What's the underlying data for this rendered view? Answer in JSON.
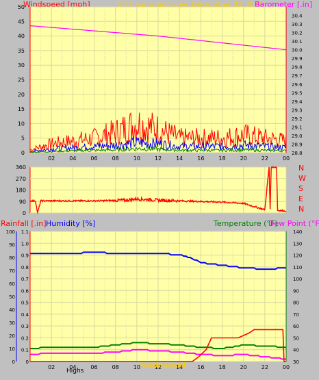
{
  "header": {
    "title": "24 hour graph day.   December 01 2015",
    "left_label": "Windspeed [mph]",
    "right_label": "Barometer [.in]"
  },
  "compass": [
    "N",
    "W",
    "S",
    "E",
    "N"
  ],
  "footer": {
    "rain_label": "Rainfall [.in]",
    "humidity_label": "Humidity [%]",
    "temp_label": "Temperature (°F)",
    "dew_label": "Dew Point (°F)",
    "high_label": "Highs",
    "wm_label": "Wunderground"
  },
  "colors": {
    "plot_bg": "#ffffa8",
    "grid": "#d8d8a0",
    "wind": "#ff0000",
    "gust": "#0000ff",
    "avg": "#008000",
    "baro": "#ff00ff",
    "temp": "#008000",
    "dew": "#ff00ff",
    "humidity": "#0000ff",
    "rain": "#ff0000",
    "axis": "#ff0000"
  },
  "chart_data": [
    {
      "type": "line",
      "name": "wind-barometer",
      "x_ticks": [
        "02",
        "04",
        "06",
        "08",
        "10",
        "12",
        "14",
        "16",
        "18",
        "20",
        "22",
        "00"
      ],
      "xlim": [
        0,
        24
      ],
      "ylim_left": [
        0,
        50
      ],
      "y_ticks_left": [
        0,
        5,
        10,
        15,
        20,
        25,
        30,
        35,
        40,
        45,
        50
      ],
      "ylim_right": [
        28.8,
        30.5
      ],
      "y_ticks_right": [
        28.8,
        28.9,
        29.0,
        29.1,
        29.2,
        29.3,
        29.4,
        29.5,
        29.6,
        29.7,
        29.8,
        29.9,
        30.0,
        30.1,
        30.2,
        30.3,
        30.4
      ],
      "series": [
        {
          "name": "Barometer",
          "axis": "right",
          "x": [
            0,
            3,
            6,
            9,
            12,
            15,
            18,
            21,
            24
          ],
          "y": [
            30.28,
            30.25,
            30.22,
            30.19,
            30.16,
            30.12,
            30.08,
            30.04,
            30.0
          ]
        },
        {
          "name": "Windspeed",
          "axis": "left",
          "x": [
            0,
            2,
            4,
            6,
            8,
            10,
            12,
            14,
            16,
            18,
            20,
            22,
            24
          ],
          "y": [
            1,
            3,
            4,
            5,
            7,
            10,
            8,
            5,
            5,
            5,
            6,
            5,
            4
          ]
        },
        {
          "name": "Gust",
          "axis": "left",
          "x": [
            0,
            2,
            4,
            6,
            8,
            10,
            12,
            14,
            16,
            18,
            20,
            22,
            24
          ],
          "y": [
            0.5,
            1.5,
            2,
            2.5,
            3,
            4,
            3.5,
            2.5,
            2.5,
            2.5,
            3,
            2.5,
            2
          ]
        },
        {
          "name": "Average",
          "axis": "left",
          "x": [
            0,
            2,
            4,
            6,
            8,
            10,
            12,
            14,
            16,
            18,
            20,
            22,
            24
          ],
          "y": [
            0.2,
            0.5,
            0.8,
            1,
            1.2,
            1.8,
            1.5,
            1,
            1,
            1,
            1.2,
            1,
            0.8
          ]
        }
      ]
    },
    {
      "type": "line",
      "name": "wind-direction",
      "ylim": [
        0,
        360
      ],
      "y_ticks": [
        0,
        90,
        180,
        270,
        360
      ],
      "series": [
        {
          "name": "Direction",
          "x": [
            0,
            0.5,
            0.7,
            1,
            3,
            6,
            9,
            10,
            12,
            14,
            16,
            18,
            20,
            21,
            22,
            22.4,
            22.5,
            22.6,
            23.1,
            23.2,
            23.3,
            24
          ],
          "y": [
            95,
            95,
            0,
            95,
            95,
            95,
            100,
            110,
            100,
            95,
            90,
            85,
            75,
            50,
            25,
            360,
            30,
            360,
            360,
            20,
            20,
            15
          ]
        }
      ]
    },
    {
      "type": "line",
      "name": "rain-humidity-temp",
      "ylim_left_rain": [
        0,
        1.1
      ],
      "y_ticks_rain": [
        0,
        0.1,
        0.2,
        0.3,
        0.4,
        0.5,
        0.6,
        0.7,
        0.8,
        0.9,
        1.0,
        1.1
      ],
      "ylim_left_humidity": [
        0,
        100
      ],
      "y_ticks_humidity": [
        0,
        10,
        20,
        30,
        40,
        50,
        60,
        70,
        80,
        90,
        100
      ],
      "ylim_right": [
        30,
        140
      ],
      "y_ticks_right": [
        30,
        40,
        50,
        60,
        70,
        80,
        90,
        100,
        110,
        120,
        130,
        140
      ],
      "series": [
        {
          "name": "Humidity",
          "axis": "humidity",
          "x": [
            0,
            4,
            6,
            8,
            10,
            12,
            14,
            15,
            16,
            18,
            20,
            22,
            24
          ],
          "y": [
            83,
            83,
            84,
            83,
            83,
            83,
            82,
            80,
            76,
            74,
            72,
            71,
            72
          ]
        },
        {
          "name": "Temperature",
          "axis": "right",
          "x": [
            0,
            2,
            4,
            6,
            8,
            10,
            12,
            14,
            16,
            18,
            20,
            22,
            24
          ],
          "y": [
            41,
            42,
            42,
            42,
            44,
            46,
            45,
            44,
            42,
            41,
            44,
            43,
            42
          ]
        },
        {
          "name": "Dew Point",
          "axis": "right",
          "x": [
            0,
            2,
            4,
            6,
            8,
            10,
            12,
            14,
            16,
            18,
            20,
            22,
            24
          ],
          "y": [
            36,
            37,
            37,
            37,
            38,
            40,
            39,
            38,
            36,
            35,
            36,
            34,
            32
          ]
        },
        {
          "name": "Rainfall",
          "axis": "rain",
          "x": [
            0,
            15.2,
            15.8,
            16.5,
            17,
            19.5,
            20.5,
            21,
            23.7,
            23.8,
            24
          ],
          "y": [
            0,
            0,
            0.04,
            0.1,
            0.2,
            0.2,
            0.24,
            0.27,
            0.27,
            0.0,
            0.0
          ]
        }
      ]
    }
  ]
}
